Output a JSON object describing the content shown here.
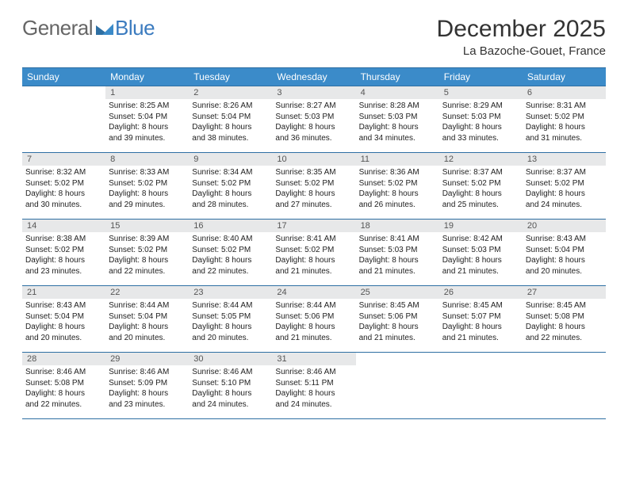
{
  "brand": {
    "general": "General",
    "blue": "Blue"
  },
  "title": "December 2025",
  "subtitle": "La Bazoche-Gouet, France",
  "header_bg": "#3b8bc9",
  "border_color": "#2e6fa3",
  "daynum_bg": "#e7e8e9",
  "weekdays": [
    "Sunday",
    "Monday",
    "Tuesday",
    "Wednesday",
    "Thursday",
    "Friday",
    "Saturday"
  ],
  "weeks": [
    [
      {
        "n": "",
        "l1": "",
        "l2": "",
        "l3": "",
        "l4": ""
      },
      {
        "n": "1",
        "l1": "Sunrise: 8:25 AM",
        "l2": "Sunset: 5:04 PM",
        "l3": "Daylight: 8 hours",
        "l4": "and 39 minutes."
      },
      {
        "n": "2",
        "l1": "Sunrise: 8:26 AM",
        "l2": "Sunset: 5:04 PM",
        "l3": "Daylight: 8 hours",
        "l4": "and 38 minutes."
      },
      {
        "n": "3",
        "l1": "Sunrise: 8:27 AM",
        "l2": "Sunset: 5:03 PM",
        "l3": "Daylight: 8 hours",
        "l4": "and 36 minutes."
      },
      {
        "n": "4",
        "l1": "Sunrise: 8:28 AM",
        "l2": "Sunset: 5:03 PM",
        "l3": "Daylight: 8 hours",
        "l4": "and 34 minutes."
      },
      {
        "n": "5",
        "l1": "Sunrise: 8:29 AM",
        "l2": "Sunset: 5:03 PM",
        "l3": "Daylight: 8 hours",
        "l4": "and 33 minutes."
      },
      {
        "n": "6",
        "l1": "Sunrise: 8:31 AM",
        "l2": "Sunset: 5:02 PM",
        "l3": "Daylight: 8 hours",
        "l4": "and 31 minutes."
      }
    ],
    [
      {
        "n": "7",
        "l1": "Sunrise: 8:32 AM",
        "l2": "Sunset: 5:02 PM",
        "l3": "Daylight: 8 hours",
        "l4": "and 30 minutes."
      },
      {
        "n": "8",
        "l1": "Sunrise: 8:33 AM",
        "l2": "Sunset: 5:02 PM",
        "l3": "Daylight: 8 hours",
        "l4": "and 29 minutes."
      },
      {
        "n": "9",
        "l1": "Sunrise: 8:34 AM",
        "l2": "Sunset: 5:02 PM",
        "l3": "Daylight: 8 hours",
        "l4": "and 28 minutes."
      },
      {
        "n": "10",
        "l1": "Sunrise: 8:35 AM",
        "l2": "Sunset: 5:02 PM",
        "l3": "Daylight: 8 hours",
        "l4": "and 27 minutes."
      },
      {
        "n": "11",
        "l1": "Sunrise: 8:36 AM",
        "l2": "Sunset: 5:02 PM",
        "l3": "Daylight: 8 hours",
        "l4": "and 26 minutes."
      },
      {
        "n": "12",
        "l1": "Sunrise: 8:37 AM",
        "l2": "Sunset: 5:02 PM",
        "l3": "Daylight: 8 hours",
        "l4": "and 25 minutes."
      },
      {
        "n": "13",
        "l1": "Sunrise: 8:37 AM",
        "l2": "Sunset: 5:02 PM",
        "l3": "Daylight: 8 hours",
        "l4": "and 24 minutes."
      }
    ],
    [
      {
        "n": "14",
        "l1": "Sunrise: 8:38 AM",
        "l2": "Sunset: 5:02 PM",
        "l3": "Daylight: 8 hours",
        "l4": "and 23 minutes."
      },
      {
        "n": "15",
        "l1": "Sunrise: 8:39 AM",
        "l2": "Sunset: 5:02 PM",
        "l3": "Daylight: 8 hours",
        "l4": "and 22 minutes."
      },
      {
        "n": "16",
        "l1": "Sunrise: 8:40 AM",
        "l2": "Sunset: 5:02 PM",
        "l3": "Daylight: 8 hours",
        "l4": "and 22 minutes."
      },
      {
        "n": "17",
        "l1": "Sunrise: 8:41 AM",
        "l2": "Sunset: 5:02 PM",
        "l3": "Daylight: 8 hours",
        "l4": "and 21 minutes."
      },
      {
        "n": "18",
        "l1": "Sunrise: 8:41 AM",
        "l2": "Sunset: 5:03 PM",
        "l3": "Daylight: 8 hours",
        "l4": "and 21 minutes."
      },
      {
        "n": "19",
        "l1": "Sunrise: 8:42 AM",
        "l2": "Sunset: 5:03 PM",
        "l3": "Daylight: 8 hours",
        "l4": "and 21 minutes."
      },
      {
        "n": "20",
        "l1": "Sunrise: 8:43 AM",
        "l2": "Sunset: 5:04 PM",
        "l3": "Daylight: 8 hours",
        "l4": "and 20 minutes."
      }
    ],
    [
      {
        "n": "21",
        "l1": "Sunrise: 8:43 AM",
        "l2": "Sunset: 5:04 PM",
        "l3": "Daylight: 8 hours",
        "l4": "and 20 minutes."
      },
      {
        "n": "22",
        "l1": "Sunrise: 8:44 AM",
        "l2": "Sunset: 5:04 PM",
        "l3": "Daylight: 8 hours",
        "l4": "and 20 minutes."
      },
      {
        "n": "23",
        "l1": "Sunrise: 8:44 AM",
        "l2": "Sunset: 5:05 PM",
        "l3": "Daylight: 8 hours",
        "l4": "and 20 minutes."
      },
      {
        "n": "24",
        "l1": "Sunrise: 8:44 AM",
        "l2": "Sunset: 5:06 PM",
        "l3": "Daylight: 8 hours",
        "l4": "and 21 minutes."
      },
      {
        "n": "25",
        "l1": "Sunrise: 8:45 AM",
        "l2": "Sunset: 5:06 PM",
        "l3": "Daylight: 8 hours",
        "l4": "and 21 minutes."
      },
      {
        "n": "26",
        "l1": "Sunrise: 8:45 AM",
        "l2": "Sunset: 5:07 PM",
        "l3": "Daylight: 8 hours",
        "l4": "and 21 minutes."
      },
      {
        "n": "27",
        "l1": "Sunrise: 8:45 AM",
        "l2": "Sunset: 5:08 PM",
        "l3": "Daylight: 8 hours",
        "l4": "and 22 minutes."
      }
    ],
    [
      {
        "n": "28",
        "l1": "Sunrise: 8:46 AM",
        "l2": "Sunset: 5:08 PM",
        "l3": "Daylight: 8 hours",
        "l4": "and 22 minutes."
      },
      {
        "n": "29",
        "l1": "Sunrise: 8:46 AM",
        "l2": "Sunset: 5:09 PM",
        "l3": "Daylight: 8 hours",
        "l4": "and 23 minutes."
      },
      {
        "n": "30",
        "l1": "Sunrise: 8:46 AM",
        "l2": "Sunset: 5:10 PM",
        "l3": "Daylight: 8 hours",
        "l4": "and 24 minutes."
      },
      {
        "n": "31",
        "l1": "Sunrise: 8:46 AM",
        "l2": "Sunset: 5:11 PM",
        "l3": "Daylight: 8 hours",
        "l4": "and 24 minutes."
      },
      {
        "n": "",
        "l1": "",
        "l2": "",
        "l3": "",
        "l4": ""
      },
      {
        "n": "",
        "l1": "",
        "l2": "",
        "l3": "",
        "l4": ""
      },
      {
        "n": "",
        "l1": "",
        "l2": "",
        "l3": "",
        "l4": ""
      }
    ]
  ]
}
